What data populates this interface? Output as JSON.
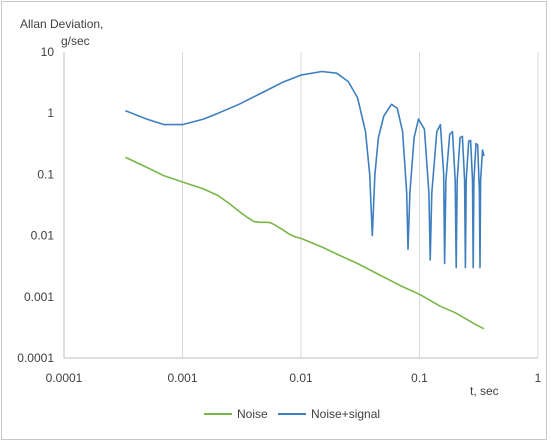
{
  "chart_data": {
    "type": "line",
    "title": "",
    "ylabel_line1": "Allan Deviation,",
    "ylabel_line2": "g/sec",
    "xlabel": "t, sec",
    "x_scale": "log",
    "y_scale": "log",
    "xlim": [
      0.0001,
      1
    ],
    "ylim": [
      0.0001,
      10
    ],
    "x_ticks": [
      "0.0001",
      "0.001",
      "0.01",
      "0.1",
      "1"
    ],
    "y_ticks": [
      "0.0001",
      "0.001",
      "0.01",
      "0.1",
      "1",
      "10"
    ],
    "grid": "vertical",
    "legend_position": "bottom",
    "series": [
      {
        "name": "Noise",
        "color": "#7ab648",
        "points": [
          [
            0.00033,
            0.19
          ],
          [
            0.0005,
            0.13
          ],
          [
            0.0007,
            0.095
          ],
          [
            0.001,
            0.075
          ],
          [
            0.0015,
            0.058
          ],
          [
            0.002,
            0.045
          ],
          [
            0.0025,
            0.033
          ],
          [
            0.003,
            0.025
          ],
          [
            0.0035,
            0.02
          ],
          [
            0.004,
            0.017
          ],
          [
            0.0045,
            0.0165
          ],
          [
            0.005,
            0.0165
          ],
          [
            0.0055,
            0.0163
          ],
          [
            0.006,
            0.015
          ],
          [
            0.007,
            0.0125
          ],
          [
            0.008,
            0.0105
          ],
          [
            0.009,
            0.0095
          ],
          [
            0.01,
            0.009
          ],
          [
            0.015,
            0.0065
          ],
          [
            0.02,
            0.005
          ],
          [
            0.03,
            0.0035
          ],
          [
            0.05,
            0.0021
          ],
          [
            0.07,
            0.0015
          ],
          [
            0.1,
            0.0011
          ],
          [
            0.15,
            0.0007
          ],
          [
            0.2,
            0.00055
          ],
          [
            0.3,
            0.00035
          ],
          [
            0.35,
            0.0003
          ]
        ]
      },
      {
        "name": "Noise+signal",
        "color": "#3f7fbf",
        "points": [
          [
            0.00033,
            1.1
          ],
          [
            0.0005,
            0.8
          ],
          [
            0.0007,
            0.65
          ],
          [
            0.001,
            0.65
          ],
          [
            0.0015,
            0.8
          ],
          [
            0.002,
            1.0
          ],
          [
            0.003,
            1.4
          ],
          [
            0.005,
            2.3
          ],
          [
            0.007,
            3.2
          ],
          [
            0.01,
            4.2
          ],
          [
            0.015,
            4.8
          ],
          [
            0.02,
            4.5
          ],
          [
            0.025,
            3.3
          ],
          [
            0.03,
            1.8
          ],
          [
            0.035,
            0.5
          ],
          [
            0.038,
            0.1
          ],
          [
            0.04,
            0.01
          ],
          [
            0.042,
            0.1
          ],
          [
            0.045,
            0.4
          ],
          [
            0.05,
            0.9
          ],
          [
            0.058,
            1.4
          ],
          [
            0.065,
            1.2
          ],
          [
            0.072,
            0.5
          ],
          [
            0.078,
            0.05
          ],
          [
            0.08,
            0.006
          ],
          [
            0.083,
            0.05
          ],
          [
            0.09,
            0.4
          ],
          [
            0.098,
            0.8
          ],
          [
            0.11,
            0.55
          ],
          [
            0.12,
            0.05
          ],
          [
            0.123,
            0.004
          ],
          [
            0.127,
            0.05
          ],
          [
            0.14,
            0.5
          ],
          [
            0.15,
            0.65
          ],
          [
            0.16,
            0.1
          ],
          [
            0.163,
            0.0035
          ],
          [
            0.167,
            0.08
          ],
          [
            0.18,
            0.45
          ],
          [
            0.19,
            0.5
          ],
          [
            0.2,
            0.08
          ],
          [
            0.204,
            0.003
          ],
          [
            0.208,
            0.08
          ],
          [
            0.22,
            0.4
          ],
          [
            0.23,
            0.42
          ],
          [
            0.24,
            0.08
          ],
          [
            0.244,
            0.003
          ],
          [
            0.248,
            0.08
          ],
          [
            0.26,
            0.35
          ],
          [
            0.27,
            0.36
          ],
          [
            0.28,
            0.08
          ],
          [
            0.284,
            0.003
          ],
          [
            0.288,
            0.08
          ],
          [
            0.3,
            0.32
          ],
          [
            0.31,
            0.3
          ],
          [
            0.32,
            0.05
          ],
          [
            0.324,
            0.003
          ],
          [
            0.328,
            0.08
          ],
          [
            0.34,
            0.25
          ],
          [
            0.35,
            0.2
          ]
        ]
      }
    ]
  }
}
